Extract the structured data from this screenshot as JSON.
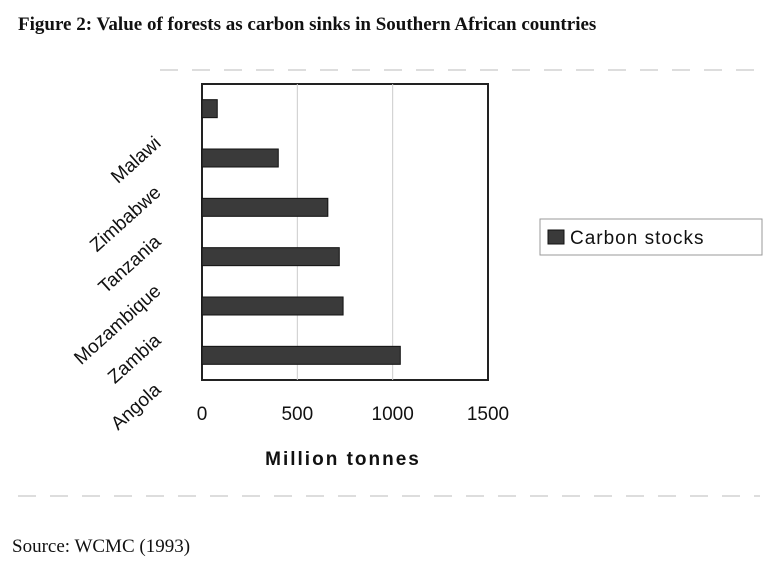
{
  "figure": {
    "title": "Figure 2:  Value of forests as carbon sinks in Southern African countries",
    "source": "Source:  WCMC (1993)"
  },
  "chart_data": {
    "type": "bar",
    "orientation": "horizontal",
    "categories": [
      "Angola",
      "Zambia",
      "Mozambique",
      "Tanzania",
      "Zimbabwe",
      "Malawi"
    ],
    "series": [
      {
        "name": "Carbon stocks",
        "values": [
          1040,
          740,
          720,
          660,
          400,
          80
        ]
      }
    ],
    "title": "",
    "xlabel": "Million tonnes",
    "ylabel": "",
    "xlim": [
      0,
      1500
    ],
    "xticks": [
      "0",
      "500",
      "1000",
      "1500"
    ],
    "grid": "vertical",
    "legend_position": "right",
    "bar_color": "#3a3a3a",
    "legend_label": "Carbon stocks"
  }
}
